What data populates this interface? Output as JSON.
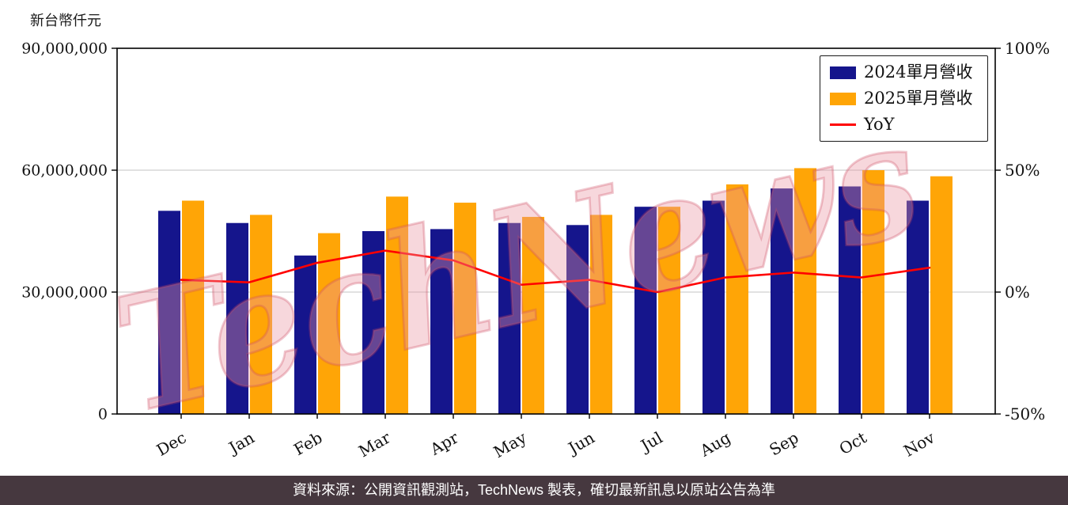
{
  "page": {
    "unit_label": "新台幣仟元",
    "watermark": "TechNews",
    "footer": "資料來源：公開資訊觀測站，TechNews 製表，確切最新訊息以原站公告為準",
    "colors": {
      "footer_bg": "#46383f",
      "footer_text": "#ffffff",
      "grid": "#cfcfcf",
      "axis": "#000000",
      "watermark": "#e896a2"
    }
  },
  "chart_data": {
    "type": "bar",
    "title": "",
    "categories": [
      "Dec",
      "Jan",
      "Feb",
      "Mar",
      "Apr",
      "May",
      "Jun",
      "Jul",
      "Aug",
      "Sep",
      "Oct",
      "Nov"
    ],
    "series": [
      {
        "name": "2024單月營收",
        "color": "#15158c",
        "values": [
          50000000,
          47000000,
          39000000,
          45000000,
          45500000,
          47000000,
          46500000,
          51000000,
          52500000,
          55500000,
          56000000,
          52500000
        ]
      },
      {
        "name": "2025單月營收",
        "color": "#ffa506",
        "values": [
          52500000,
          49000000,
          44500000,
          53500000,
          52000000,
          48500000,
          49000000,
          51000000,
          56500000,
          60500000,
          60000000,
          58500000
        ]
      }
    ],
    "line_series": {
      "name": "YoY",
      "color": "#ff0000",
      "values": [
        5,
        4,
        12,
        17,
        13,
        3,
        5,
        0,
        6,
        8,
        6,
        10
      ]
    },
    "left_axis": {
      "label": "新台幣仟元",
      "min": 0,
      "max": 90000000,
      "ticks": [
        "0",
        "30,000,000",
        "60,000,000",
        "90,000,000"
      ]
    },
    "right_axis": {
      "min": -50,
      "max": 100,
      "ticks": [
        "-50%",
        "0%",
        "50%",
        "100%"
      ]
    },
    "grid": true,
    "legend_position": "top-right"
  }
}
